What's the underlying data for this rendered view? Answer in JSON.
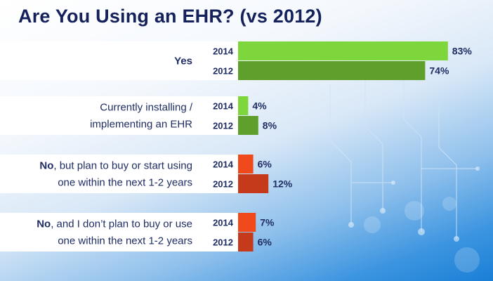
{
  "title": "Are You Using an EHR? (vs 2012)",
  "chart_data": {
    "type": "bar",
    "orientation": "horizontal",
    "title": "Are You Using an EHR? (vs 2012)",
    "value_suffix": "%",
    "categories": [
      {
        "lines": [
          {
            "bold": "Yes",
            "rest": ""
          }
        ],
        "color_2014": "#7dd63c",
        "color_2012": "#5fa02c"
      },
      {
        "lines": [
          {
            "bold": "",
            "rest": "Currently installing /"
          },
          {
            "bold": "",
            "rest": "implementing an EHR"
          }
        ],
        "color_2014": "#7dd63c",
        "color_2012": "#5fa02c"
      },
      {
        "lines": [
          {
            "bold": "No",
            "rest": ", but plan to buy or start using"
          },
          {
            "bold": "",
            "rest": "one within the next 1-2 years"
          }
        ],
        "color_2014": "#f0491c",
        "color_2012": "#c43a1a"
      },
      {
        "lines": [
          {
            "bold": "No",
            "rest": ", and I don’t plan to buy or use"
          },
          {
            "bold": "",
            "rest": "one within the next 1-2 years"
          }
        ],
        "color_2014": "#f0491c",
        "color_2012": "#c43a1a"
      }
    ],
    "series": [
      {
        "name": "2014",
        "values": [
          83,
          4,
          6,
          7
        ]
      },
      {
        "name": "2012",
        "values": [
          74,
          8,
          12,
          6
        ]
      }
    ],
    "xlim": [
      0,
      100
    ],
    "grid": false,
    "legend": "none"
  }
}
